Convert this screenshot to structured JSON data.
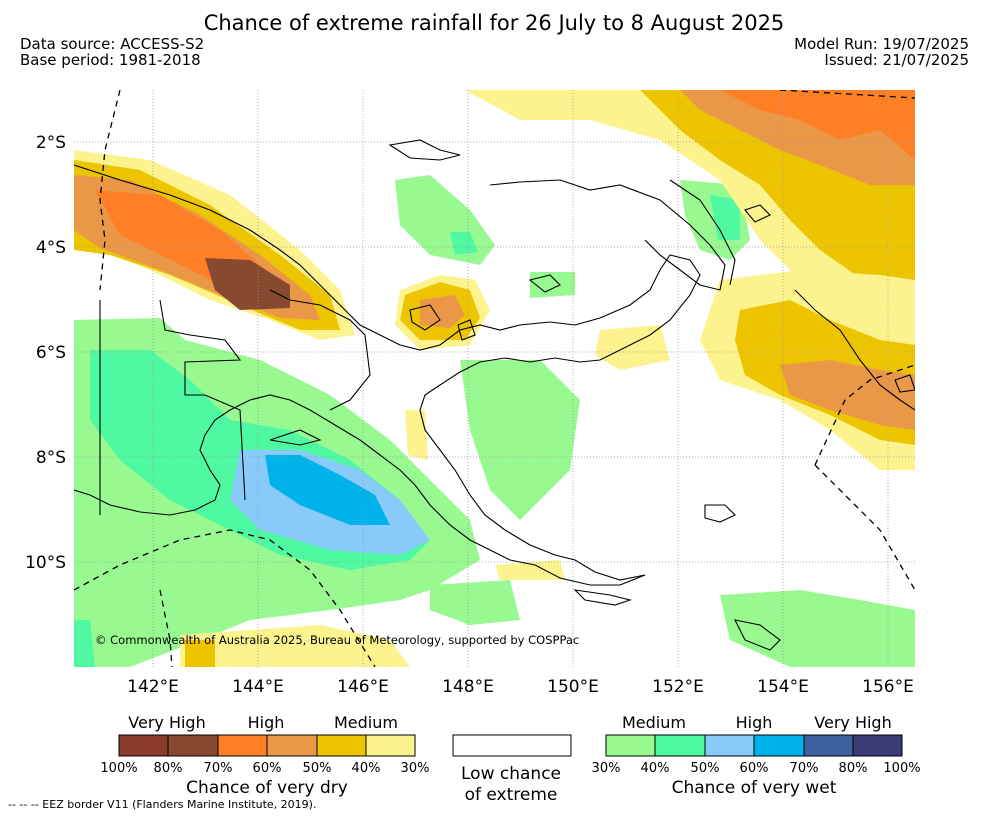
{
  "header": {
    "title": "Chance of extreme rainfall for 26 July to 8 August 2025",
    "data_source": "Data source: ACCESS-S2",
    "base_period": "Base period: 1981-2018",
    "model_run": "Model Run: 19/07/2025",
    "issued": "Issued: 21/07/2025"
  },
  "map": {
    "region": "Papua New Guinea",
    "lat_labels": [
      "2°S",
      "4°S",
      "6°S",
      "8°S",
      "10°S"
    ],
    "lon_labels": [
      "142°E",
      "144°E",
      "146°E",
      "148°E",
      "150°E",
      "152°E",
      "154°E",
      "156°E"
    ],
    "copyright": "© Commonwealth of Australia 2025, Bureau of Meteorology, supported by COSPPac"
  },
  "legend": {
    "dry": {
      "levels": [
        "Very High",
        "High",
        "Medium"
      ],
      "ticks": [
        "100%",
        "80%",
        "70%",
        "60%",
        "50%",
        "40%",
        "30%"
      ],
      "colors": [
        "#8b3a2e",
        "#87492f",
        "#ff7f27",
        "#ea9848",
        "#ecc500",
        "#fcf38e"
      ],
      "caption": "Chance of very dry"
    },
    "low": {
      "caption_line1": "Low chance",
      "caption_line2": "of extreme"
    },
    "wet": {
      "levels": [
        "Medium",
        "High",
        "Very High"
      ],
      "ticks": [
        "30%",
        "40%",
        "50%",
        "60%",
        "70%",
        "80%",
        "100%"
      ],
      "colors": [
        "#98f991",
        "#4ff9a1",
        "#88cbfa",
        "#00b2ea",
        "#3c5f9e",
        "#3b3b78"
      ],
      "caption": "Chance of very wet"
    }
  },
  "footer": {
    "eez": "--  --  -- EEZ border V11 (Flanders Marine Institute, 2019)."
  }
}
